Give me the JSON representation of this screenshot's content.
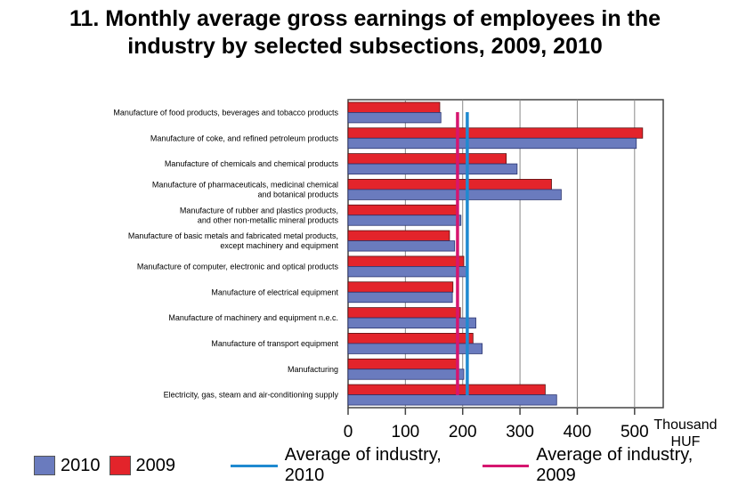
{
  "title_line1": "11. Monthly average gross earnings of employees in the",
  "title_line2": "industry by selected subsections, 2009, 2010",
  "x_unit_line1": "Thousand",
  "x_unit_line2": "HUF",
  "colors": {
    "s2010": "#6a7bbe",
    "s2009": "#e3242b",
    "avg2010": "#1f8ad0",
    "avg2009": "#d6166f"
  },
  "legend": {
    "s2010": "2010",
    "s2009": "2009",
    "avg2010": "Average of industry, 2010",
    "avg2009": "Average of industry, 2009"
  },
  "chart_data": {
    "type": "bar",
    "orientation": "horizontal",
    "title": "11. Monthly average gross earnings of employees in the industry by selected subsections, 2009, 2010",
    "xlabel": "Thousand HUF",
    "xlim": [
      0,
      550
    ],
    "xticks": [
      0,
      100,
      200,
      300,
      400,
      500
    ],
    "grid": "vertical",
    "legend_position": "bottom",
    "categories": [
      [
        "Manufacture of food products, beverages and tobacco products"
      ],
      [
        "Manufacture of coke, and refined petroleum products"
      ],
      [
        "Manufacture of chemicals and chemical products"
      ],
      [
        "Manufacture of pharmaceuticals, medicinal chemical",
        "and botanical products"
      ],
      [
        "Manufacture of rubber and plastics products,",
        "and other non-metallic mineral products"
      ],
      [
        "Manufacture of basic metals and fabricated metal products,",
        "except machinery and equipment"
      ],
      [
        "Manufacture of computer, electronic  and optical products"
      ],
      [
        "Manufacture of electrical equipment"
      ],
      [
        "Manufacture of machinery and equipment n.e.c."
      ],
      [
        "Manufacture of transport equipment"
      ],
      [
        "Manufacturing"
      ],
      [
        "Electricity, gas, steam and air-conditioning supply"
      ]
    ],
    "series": [
      {
        "name": "2009",
        "values": [
          160,
          514,
          276,
          355,
          190,
          177,
          202,
          183,
          196,
          218,
          193,
          344
        ]
      },
      {
        "name": "2010",
        "values": [
          162,
          503,
          295,
          372,
          197,
          186,
          208,
          182,
          223,
          234,
          202,
          364
        ]
      }
    ],
    "reference_lines": [
      {
        "name": "Average of industry, 2010",
        "value": 208
      },
      {
        "name": "Average of industry, 2009",
        "value": 191
      }
    ]
  }
}
